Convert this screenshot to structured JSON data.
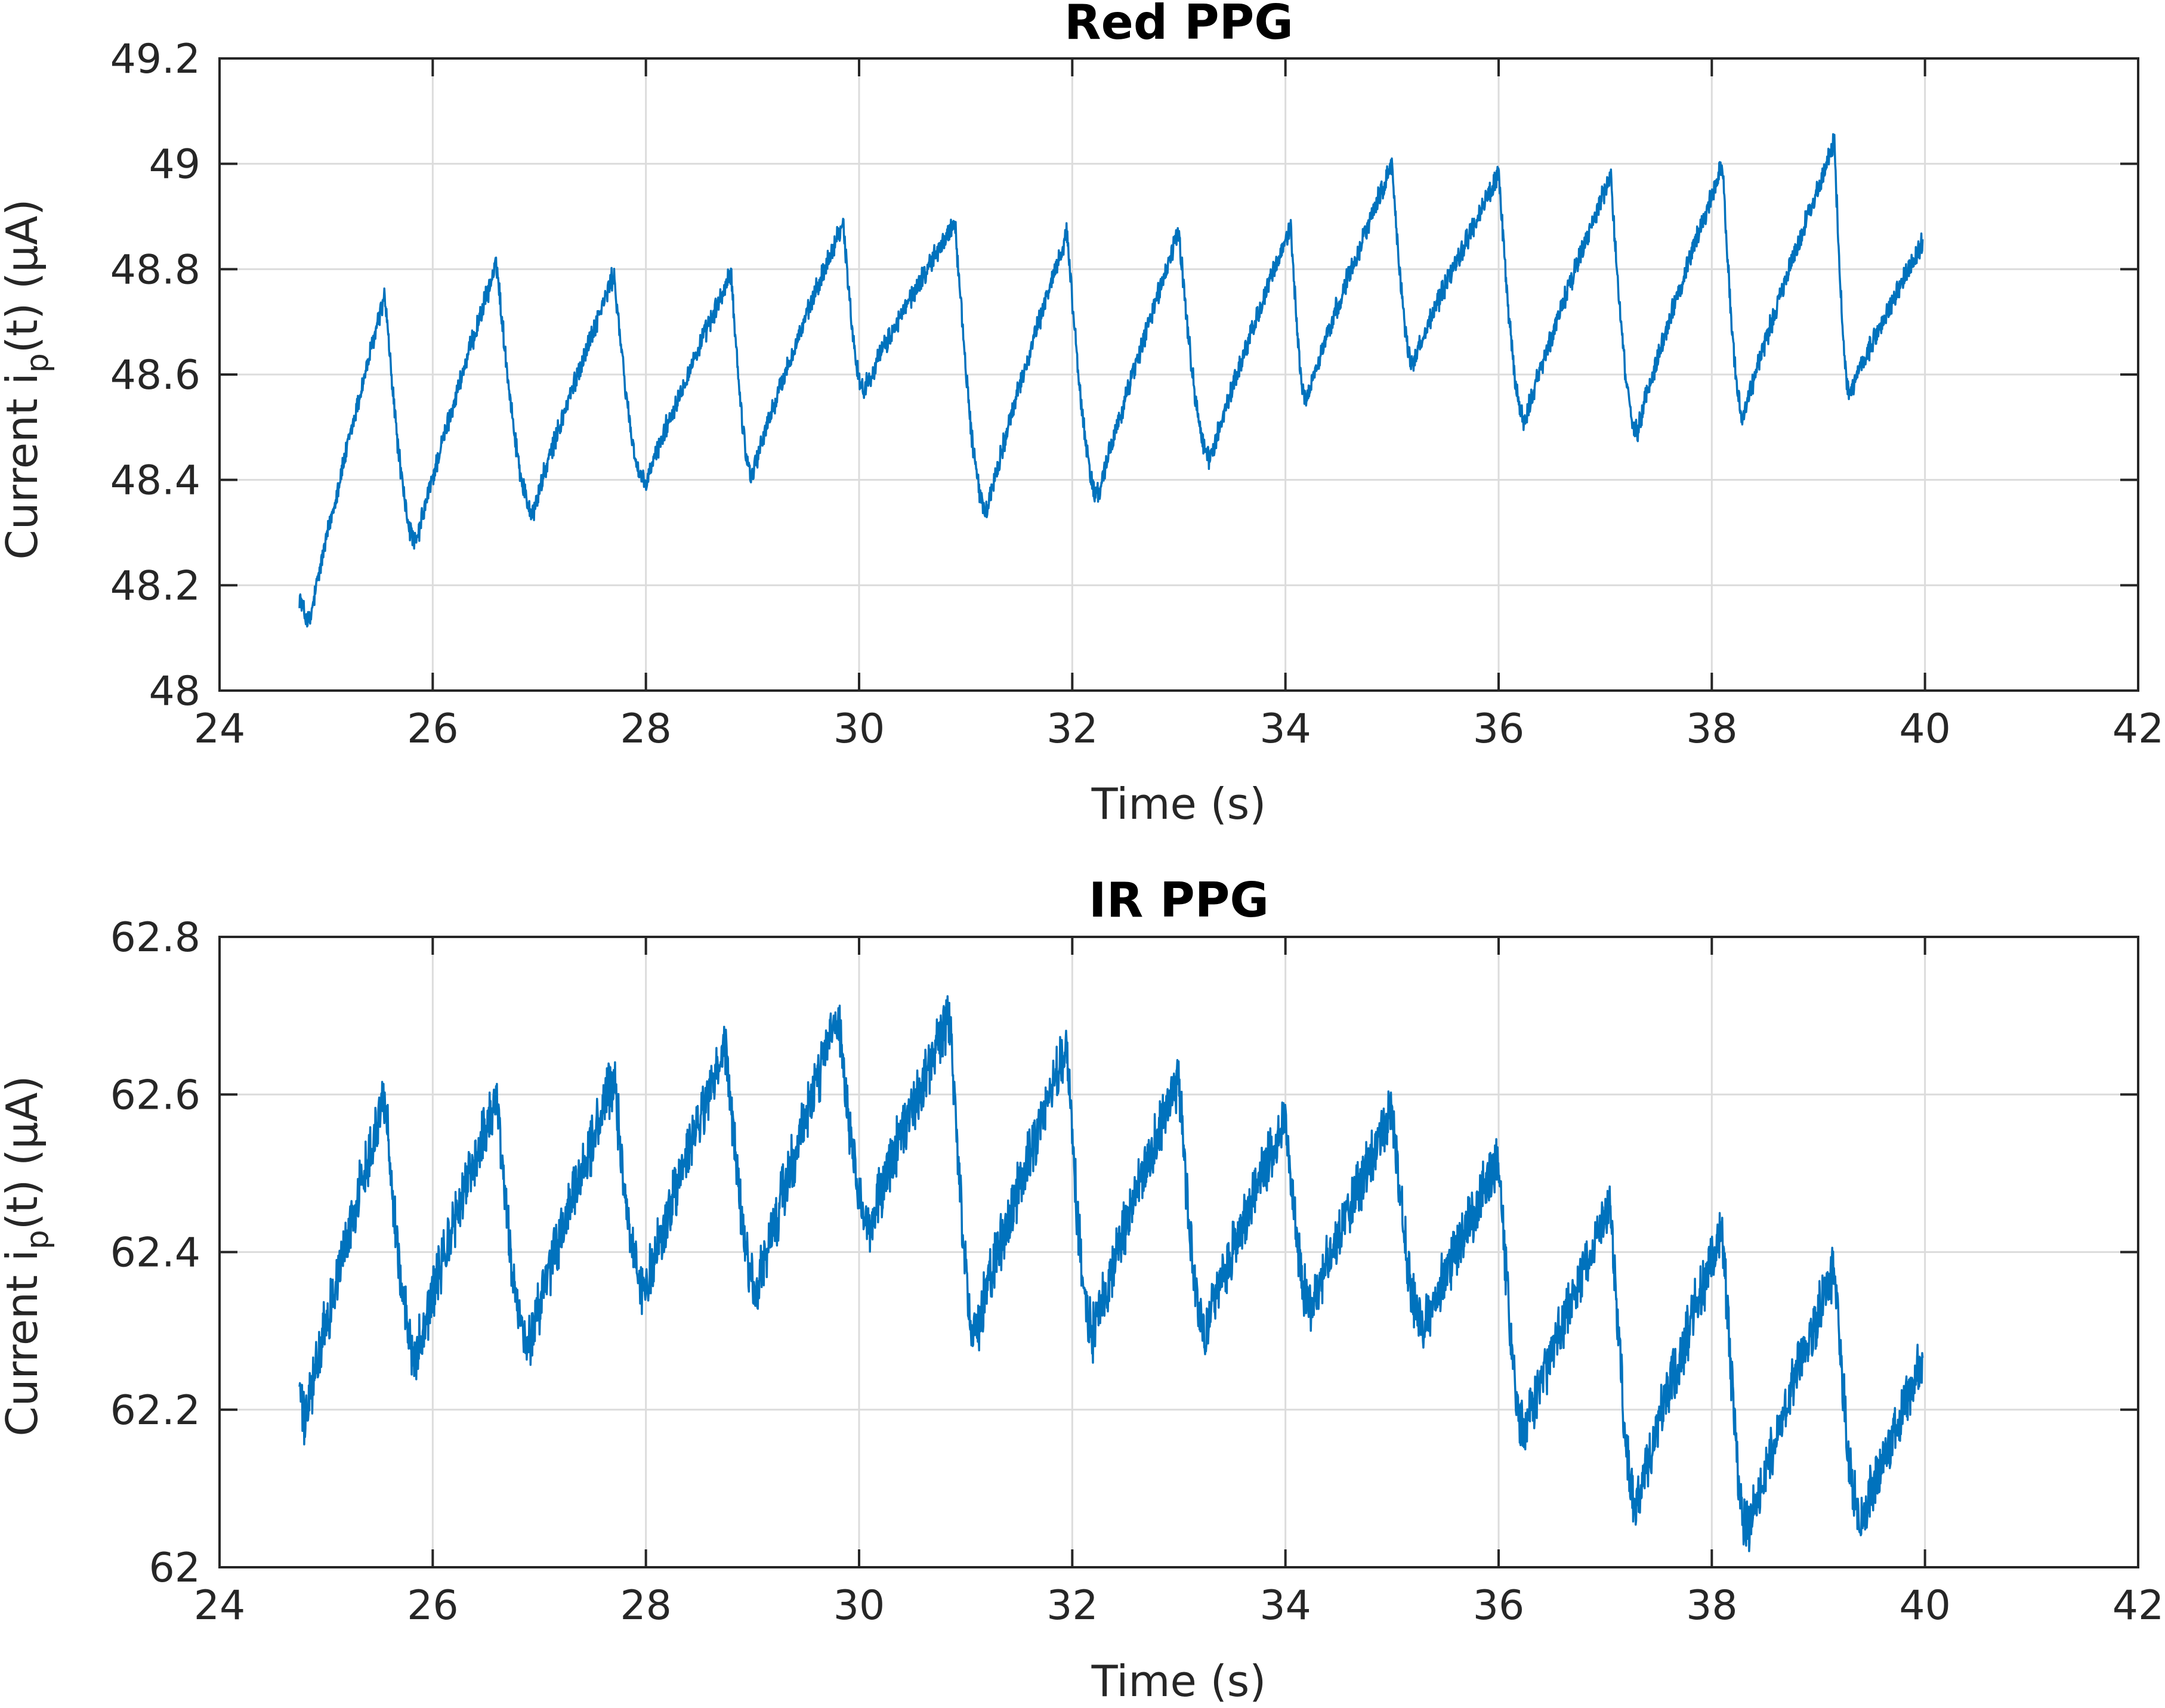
{
  "chart_data": [
    {
      "type": "line",
      "title": "Red PPG",
      "xlabel": "Time (s)",
      "ylabel": {
        "main": "Current i",
        "subscript": "p",
        "rest": "(t) (μA)"
      },
      "xlim": [
        24,
        42
      ],
      "ylim": [
        48,
        49.2
      ],
      "xticks": [
        24,
        26,
        28,
        30,
        32,
        34,
        36,
        38,
        40,
        42
      ],
      "yticks": [
        48,
        48.2,
        48.4,
        48.6,
        48.8,
        49,
        49.2
      ],
      "ytick_labels": [
        "48",
        "48.2",
        "48.4",
        "48.6",
        "48.8",
        "49",
        "49.2"
      ],
      "grid": true,
      "series_color": "#0072BD",
      "noise": 0.035,
      "peaks": [
        [
          25.55,
          48.75
        ],
        [
          26.6,
          48.81
        ],
        [
          27.7,
          48.79
        ],
        [
          28.8,
          48.79
        ],
        [
          29.85,
          48.89
        ],
        [
          30.9,
          48.89
        ],
        [
          31.95,
          48.87
        ],
        [
          33.0,
          48.87
        ],
        [
          34.05,
          48.88
        ],
        [
          35.0,
          49.0
        ],
        [
          36.0,
          48.98
        ],
        [
          37.05,
          48.98
        ],
        [
          38.1,
          49.0
        ],
        [
          39.15,
          49.04
        ]
      ],
      "troughs": [
        [
          24.85,
          48.13
        ],
        [
          25.85,
          48.28
        ],
        [
          26.95,
          48.34
        ],
        [
          28.0,
          48.39
        ],
        [
          29.0,
          48.41
        ],
        [
          30.05,
          48.57
        ],
        [
          31.2,
          48.34
        ],
        [
          32.25,
          48.37
        ],
        [
          33.3,
          48.44
        ],
        [
          34.2,
          48.55
        ],
        [
          35.2,
          48.62
        ],
        [
          36.25,
          48.51
        ],
        [
          37.3,
          48.49
        ],
        [
          38.3,
          48.52
        ],
        [
          39.3,
          48.56
        ]
      ],
      "end": [
        39.98,
        48.85
      ]
    },
    {
      "type": "line",
      "title": "IR PPG",
      "xlabel": "Time (s)",
      "ylabel": {
        "main": "Current i",
        "subscript": "p",
        "rest": "(t) (μA)"
      },
      "xlim": [
        24,
        42
      ],
      "ylim": [
        62,
        62.8
      ],
      "xticks": [
        24,
        26,
        28,
        30,
        32,
        34,
        36,
        38,
        40,
        42
      ],
      "yticks": [
        62,
        62.2,
        62.4,
        62.6,
        62.8
      ],
      "ytick_labels": [
        "62",
        "62.2",
        "62.4",
        "62.6",
        "62.8"
      ],
      "grid": true,
      "series_color": "#0072BD",
      "noise": 0.06,
      "peaks": [
        [
          25.55,
          62.6
        ],
        [
          26.6,
          62.6
        ],
        [
          27.7,
          62.62
        ],
        [
          28.75,
          62.66
        ],
        [
          29.8,
          62.7
        ],
        [
          30.85,
          62.7
        ],
        [
          31.95,
          62.66
        ],
        [
          33.0,
          62.62
        ],
        [
          34.0,
          62.57
        ],
        [
          35.0,
          62.58
        ],
        [
          36.0,
          62.52
        ],
        [
          37.05,
          62.46
        ],
        [
          38.1,
          62.43
        ],
        [
          39.15,
          62.38
        ]
      ],
      "troughs": [
        [
          24.8,
          62.18
        ],
        [
          25.85,
          62.27
        ],
        [
          26.9,
          62.28
        ],
        [
          28.0,
          62.35
        ],
        [
          29.05,
          62.35
        ],
        [
          30.1,
          62.43
        ],
        [
          31.1,
          62.3
        ],
        [
          32.2,
          62.3
        ],
        [
          33.25,
          62.3
        ],
        [
          34.25,
          62.33
        ],
        [
          35.3,
          62.3
        ],
        [
          36.25,
          62.17
        ],
        [
          37.3,
          62.08
        ],
        [
          38.35,
          62.05
        ],
        [
          39.4,
          62.06
        ]
      ],
      "end": [
        39.98,
        62.26
      ]
    }
  ]
}
